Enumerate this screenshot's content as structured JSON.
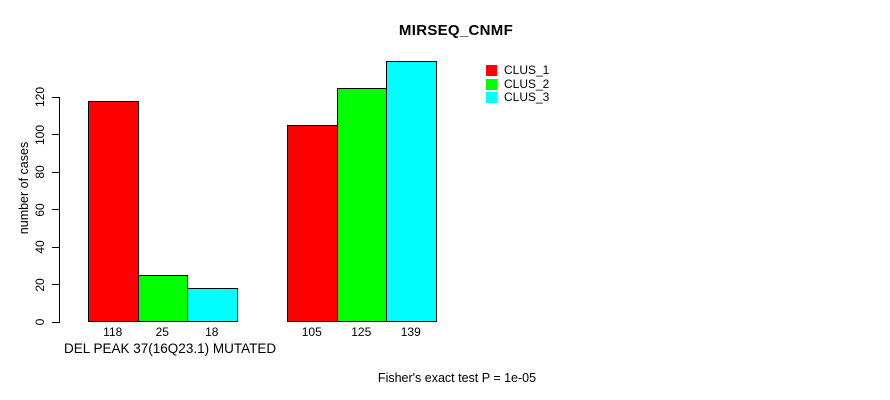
{
  "chart_data": {
    "type": "bar",
    "title": "MIRSEQ_CNMF",
    "ylabel": "number of cases",
    "xlabel": "DEL PEAK 37(16Q23.1) MUTATED",
    "footnote": "Fisher's exact test P = 1e-05",
    "categories": [
      "DEL PEAK 37(16Q23.1) MUTATED",
      ""
    ],
    "series": [
      {
        "name": "CLUS_1",
        "color": "#ff0000",
        "values": [
          118,
          105
        ]
      },
      {
        "name": "CLUS_2",
        "color": "#00ff00",
        "values": [
          25,
          125
        ]
      },
      {
        "name": "CLUS_3",
        "color": "#00ffff",
        "values": [
          18,
          139
        ]
      }
    ],
    "bar_value_labels": [
      [
        118,
        25,
        18
      ],
      [
        105,
        125,
        139
      ]
    ],
    "y_ticks": [
      0,
      20,
      40,
      60,
      80,
      100,
      120
    ],
    "ylim": [
      0,
      139
    ],
    "grid": false,
    "legend_position": "top-right",
    "colors": {
      "bar_border": "#000000",
      "text": "#000000",
      "background": "#ffffff"
    }
  }
}
